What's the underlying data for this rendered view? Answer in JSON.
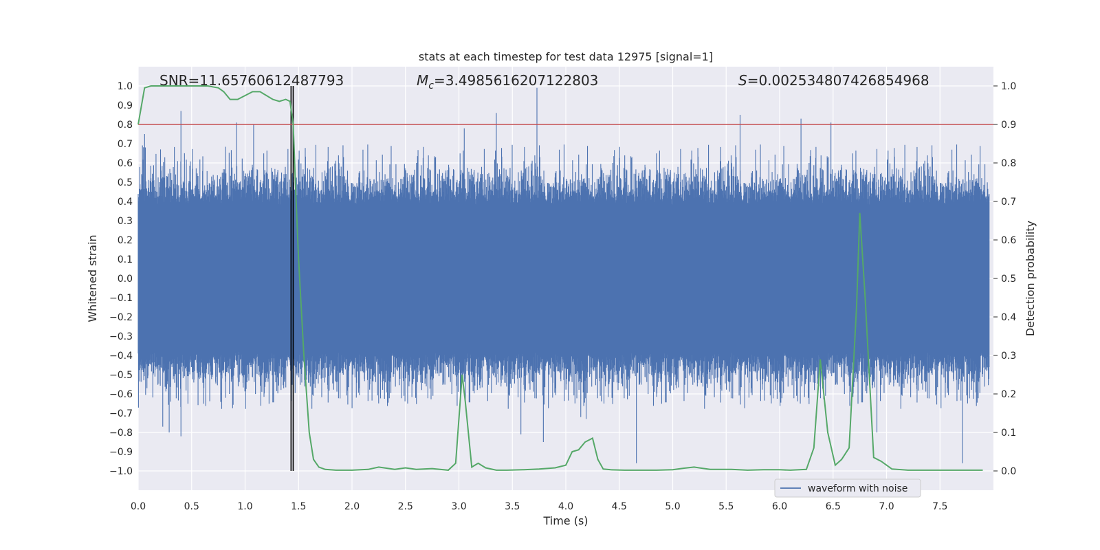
{
  "chart_data": {
    "type": "line",
    "title": "stats at each timestep for test data 12975 [signal=1]",
    "xlabel": "Time (s)",
    "ylabel": "Whitened strain",
    "y2label": "Detection probability",
    "xlim": [
      0.0,
      8.0
    ],
    "ylim": [
      -1.1,
      1.1
    ],
    "y2lim": [
      -0.05,
      1.05
    ],
    "xticks": [
      0.0,
      0.5,
      1.0,
      1.5,
      2.0,
      2.5,
      3.0,
      3.5,
      4.0,
      4.5,
      5.0,
      5.5,
      6.0,
      6.5,
      7.0,
      7.5
    ],
    "xtick_labels": [
      "0.0",
      "0.5",
      "1.0",
      "1.5",
      "2.0",
      "2.5",
      "3.0",
      "3.5",
      "4.0",
      "4.5",
      "5.0",
      "5.5",
      "6.0",
      "6.5",
      "7.0",
      "7.5"
    ],
    "yticks": [
      -1.0,
      -0.9,
      -0.8,
      -0.7,
      -0.6,
      -0.5,
      -0.4,
      -0.3,
      -0.2,
      -0.1,
      0.0,
      0.1,
      0.2,
      0.3,
      0.4,
      0.5,
      0.6,
      0.7,
      0.8,
      0.9,
      1.0
    ],
    "ytick_labels": [
      "−1.0",
      "−0.9",
      "−0.8",
      "−0.7",
      "−0.6",
      "−0.5",
      "−0.4",
      "−0.3",
      "−0.2",
      "−0.1",
      "0.0",
      "0.1",
      "0.2",
      "0.3",
      "0.4",
      "0.5",
      "0.6",
      "0.7",
      "0.8",
      "0.9",
      "1.0"
    ],
    "y2ticks": [
      0.0,
      0.1,
      0.2,
      0.3,
      0.4,
      0.5,
      0.6,
      0.7,
      0.8,
      0.9,
      1.0
    ],
    "y2tick_labels": [
      "0.0",
      "0.1",
      "0.2",
      "0.3",
      "0.4",
      "0.5",
      "0.6",
      "0.7",
      "0.8",
      "0.9",
      "1.0"
    ],
    "annotations": {
      "snr": "SNR=11.65760612487793",
      "mc_symbol": "M",
      "mc_sub": "c",
      "mc_value": "=3.4985616207122803",
      "s_symbol": "S",
      "s_value": "=0.002534807426854968"
    },
    "legend": {
      "placement": "lower-right",
      "label": "waveform with noise"
    },
    "threshold": {
      "y2": 0.9,
      "color": "#c44e52"
    },
    "marker_times": [
      1.43,
      1.45
    ],
    "series": [
      {
        "name": "waveform with noise",
        "axis": "y",
        "color": "#4c72b0",
        "description": "dense whitened strain noise, sampled procedurally",
        "envelope": 0.6,
        "spikes": [
          {
            "t": 0.06,
            "v": 0.75
          },
          {
            "t": 0.23,
            "v": -0.77
          },
          {
            "t": 0.29,
            "v": -0.8
          },
          {
            "t": 0.4,
            "v": 0.87
          },
          {
            "t": 0.4,
            "v": -0.82
          },
          {
            "t": 0.92,
            "v": 0.81
          },
          {
            "t": 1.08,
            "v": 0.8
          },
          {
            "t": 3.05,
            "v": 0.78
          },
          {
            "t": 3.35,
            "v": 0.86
          },
          {
            "t": 3.73,
            "v": 0.99
          },
          {
            "t": 3.58,
            "v": -0.81
          },
          {
            "t": 3.79,
            "v": -0.85
          },
          {
            "t": 4.14,
            "v": -0.72
          },
          {
            "t": 4.19,
            "v": -0.73
          },
          {
            "t": 4.66,
            "v": -0.96
          },
          {
            "t": 5.63,
            "v": 0.85
          },
          {
            "t": 6.2,
            "v": 0.83
          },
          {
            "t": 6.48,
            "v": 0.81
          },
          {
            "t": 6.91,
            "v": -0.8
          },
          {
            "t": 7.71,
            "v": -0.96
          }
        ]
      },
      {
        "name": "detection probability",
        "axis": "y2",
        "color": "#55a868",
        "x": [
          0.0,
          0.06,
          0.12,
          0.2,
          0.35,
          0.5,
          0.65,
          0.75,
          0.8,
          0.86,
          0.93,
          1.0,
          1.07,
          1.14,
          1.2,
          1.26,
          1.32,
          1.38,
          1.42,
          1.45,
          1.47,
          1.5,
          1.55,
          1.6,
          1.64,
          1.69,
          1.75,
          1.85,
          2.0,
          2.15,
          2.25,
          2.4,
          2.5,
          2.6,
          2.75,
          2.9,
          2.97,
          3.03,
          3.06,
          3.12,
          3.18,
          3.25,
          3.35,
          3.45,
          3.6,
          3.75,
          3.9,
          4.0,
          4.06,
          4.12,
          4.18,
          4.25,
          4.3,
          4.35,
          4.42,
          4.55,
          4.7,
          4.85,
          5.0,
          5.1,
          5.2,
          5.35,
          5.55,
          5.7,
          5.85,
          6.0,
          6.1,
          6.25,
          6.32,
          6.38,
          6.45,
          6.52,
          6.58,
          6.65,
          6.72,
          6.75,
          6.8,
          6.88,
          6.95,
          7.05,
          7.2,
          7.4,
          7.6,
          7.75,
          7.9
        ],
        "values": [
          0.9,
          0.995,
          1.0,
          1.0,
          1.0,
          1.0,
          1.0,
          0.995,
          0.985,
          0.965,
          0.965,
          0.975,
          0.985,
          0.985,
          0.975,
          0.965,
          0.96,
          0.965,
          0.96,
          0.9,
          0.75,
          0.55,
          0.3,
          0.1,
          0.03,
          0.01,
          0.004,
          0.002,
          0.002,
          0.004,
          0.01,
          0.004,
          0.008,
          0.004,
          0.006,
          0.002,
          0.02,
          0.25,
          0.18,
          0.01,
          0.02,
          0.008,
          0.002,
          0.002,
          0.003,
          0.005,
          0.008,
          0.015,
          0.05,
          0.055,
          0.075,
          0.085,
          0.03,
          0.005,
          0.003,
          0.002,
          0.002,
          0.002,
          0.003,
          0.007,
          0.01,
          0.004,
          0.004,
          0.002,
          0.003,
          0.003,
          0.002,
          0.004,
          0.06,
          0.29,
          0.1,
          0.015,
          0.03,
          0.06,
          0.43,
          0.67,
          0.45,
          0.035,
          0.025,
          0.005,
          0.002,
          0.002,
          0.002,
          0.002,
          0.002
        ]
      }
    ]
  }
}
